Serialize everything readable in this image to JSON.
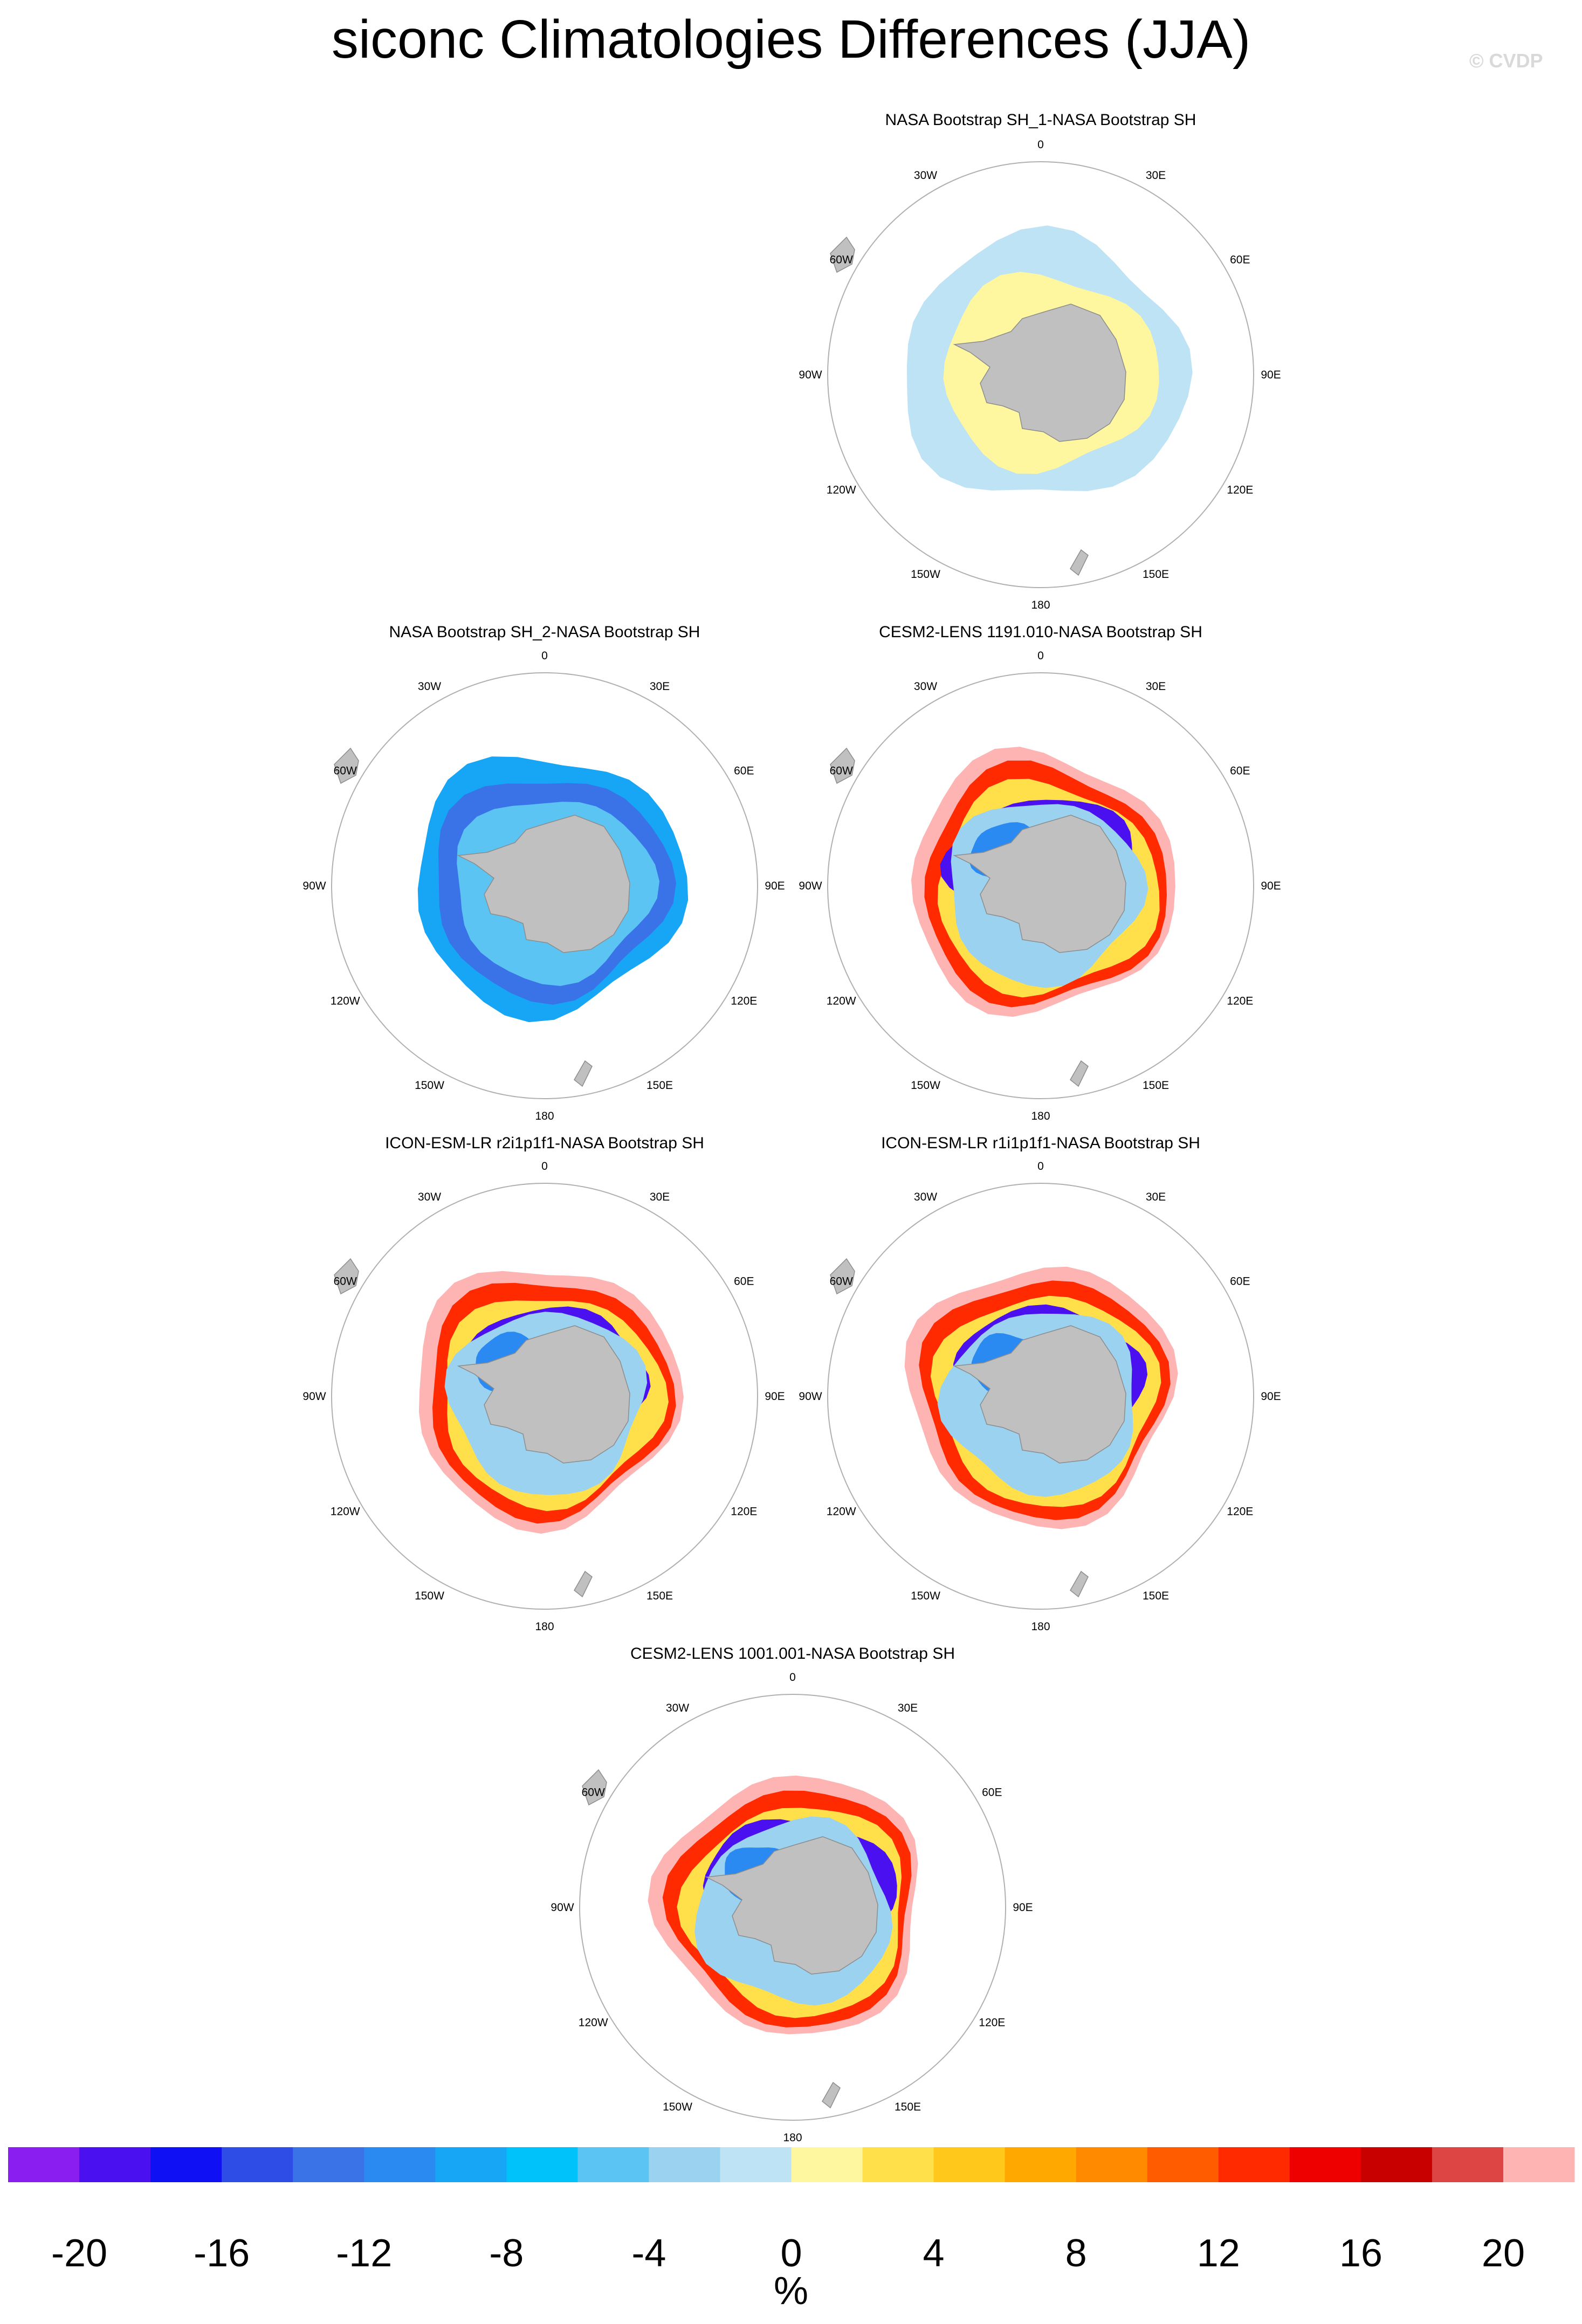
{
  "title": "siconc Climatologies Differences (JJA)",
  "watermark": "© CVDP",
  "units": "%",
  "panels": [
    {
      "label": "NASA Bootstrap SH_1-NASA Bootstrap SH",
      "pattern": "uniform"
    },
    {
      "label": "NASA Bootstrap SH_2-NASA Bootstrap SH",
      "pattern": "negative"
    },
    {
      "label": "CESM2-LENS 1191.010-NASA Bootstrap SH",
      "pattern": "mixed"
    },
    {
      "label": "ICON-ESM-LR r2i1p1f1-NASA Bootstrap SH",
      "pattern": "mixed"
    },
    {
      "label": "ICON-ESM-LR r1i1p1f1-NASA Bootstrap SH",
      "pattern": "mixed"
    },
    {
      "label": "CESM2-LENS 1001.001-NASA Bootstrap SH",
      "pattern": "mixed"
    }
  ],
  "longitude_labels": [
    "0",
    "30E",
    "60E",
    "90E",
    "120E",
    "150E",
    "180",
    "150W",
    "120W",
    "90W",
    "60W",
    "30W"
  ],
  "chart_data": {
    "type": "heatmap",
    "projection": "south polar stereographic",
    "colorbar": {
      "min": -22,
      "max": 22,
      "step": 2,
      "tick_labels": [
        "-20",
        "-16",
        "-12",
        "-8",
        "-4",
        "0",
        "4",
        "8",
        "12",
        "16",
        "20"
      ],
      "tick_values": [
        -20,
        -16,
        -12,
        -8,
        -4,
        0,
        4,
        8,
        12,
        16,
        20
      ],
      "colors": [
        "#8a1ef0",
        "#4a10f0",
        "#1010f5",
        "#2e4de6",
        "#3a72e8",
        "#2b8af2",
        "#16a6f5",
        "#00c2fa",
        "#5cc4f2",
        "#9bd2f0",
        "#bde3f5",
        "#fff6a0",
        "#ffe04a",
        "#ffc81a",
        "#ffa800",
        "#ff8a00",
        "#ff5c00",
        "#ff2a00",
        "#ee0000",
        "#c80000",
        "#dd4444",
        "#ffb4b4"
      ]
    }
  }
}
